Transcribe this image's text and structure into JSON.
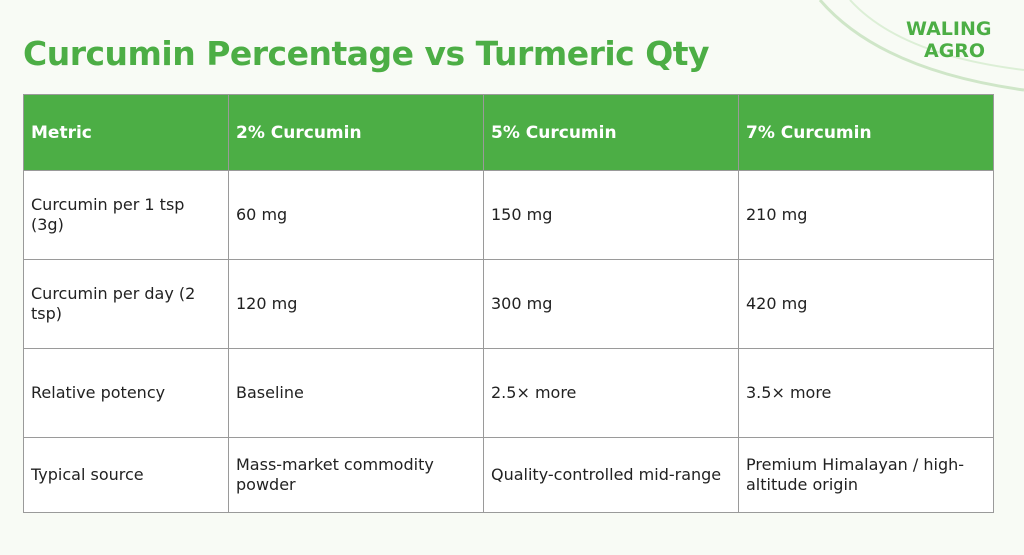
{
  "header": {
    "title": "Curcumin Percentage vs Turmeric Qty"
  },
  "logo": {
    "line1": "WALING",
    "line2": "AGRO"
  },
  "table": {
    "columns": [
      "Metric",
      "2% Curcumin",
      "5% Curcumin",
      "7% Curcumin"
    ],
    "rows": [
      [
        "Curcumin per 1 tsp (3g)",
        "60 mg",
        "150 mg",
        "210 mg"
      ],
      [
        "Curcumin per day (2 tsp)",
        "120 mg",
        "300 mg",
        "420 mg"
      ],
      [
        "Relative potency",
        "Baseline",
        "2.5× more",
        "3.5× more"
      ],
      [
        "Typical source",
        "Mass-market commodity powder",
        "Quality-controlled mid-range",
        "Premium Himalayan / high-altitude origin"
      ]
    ]
  }
}
